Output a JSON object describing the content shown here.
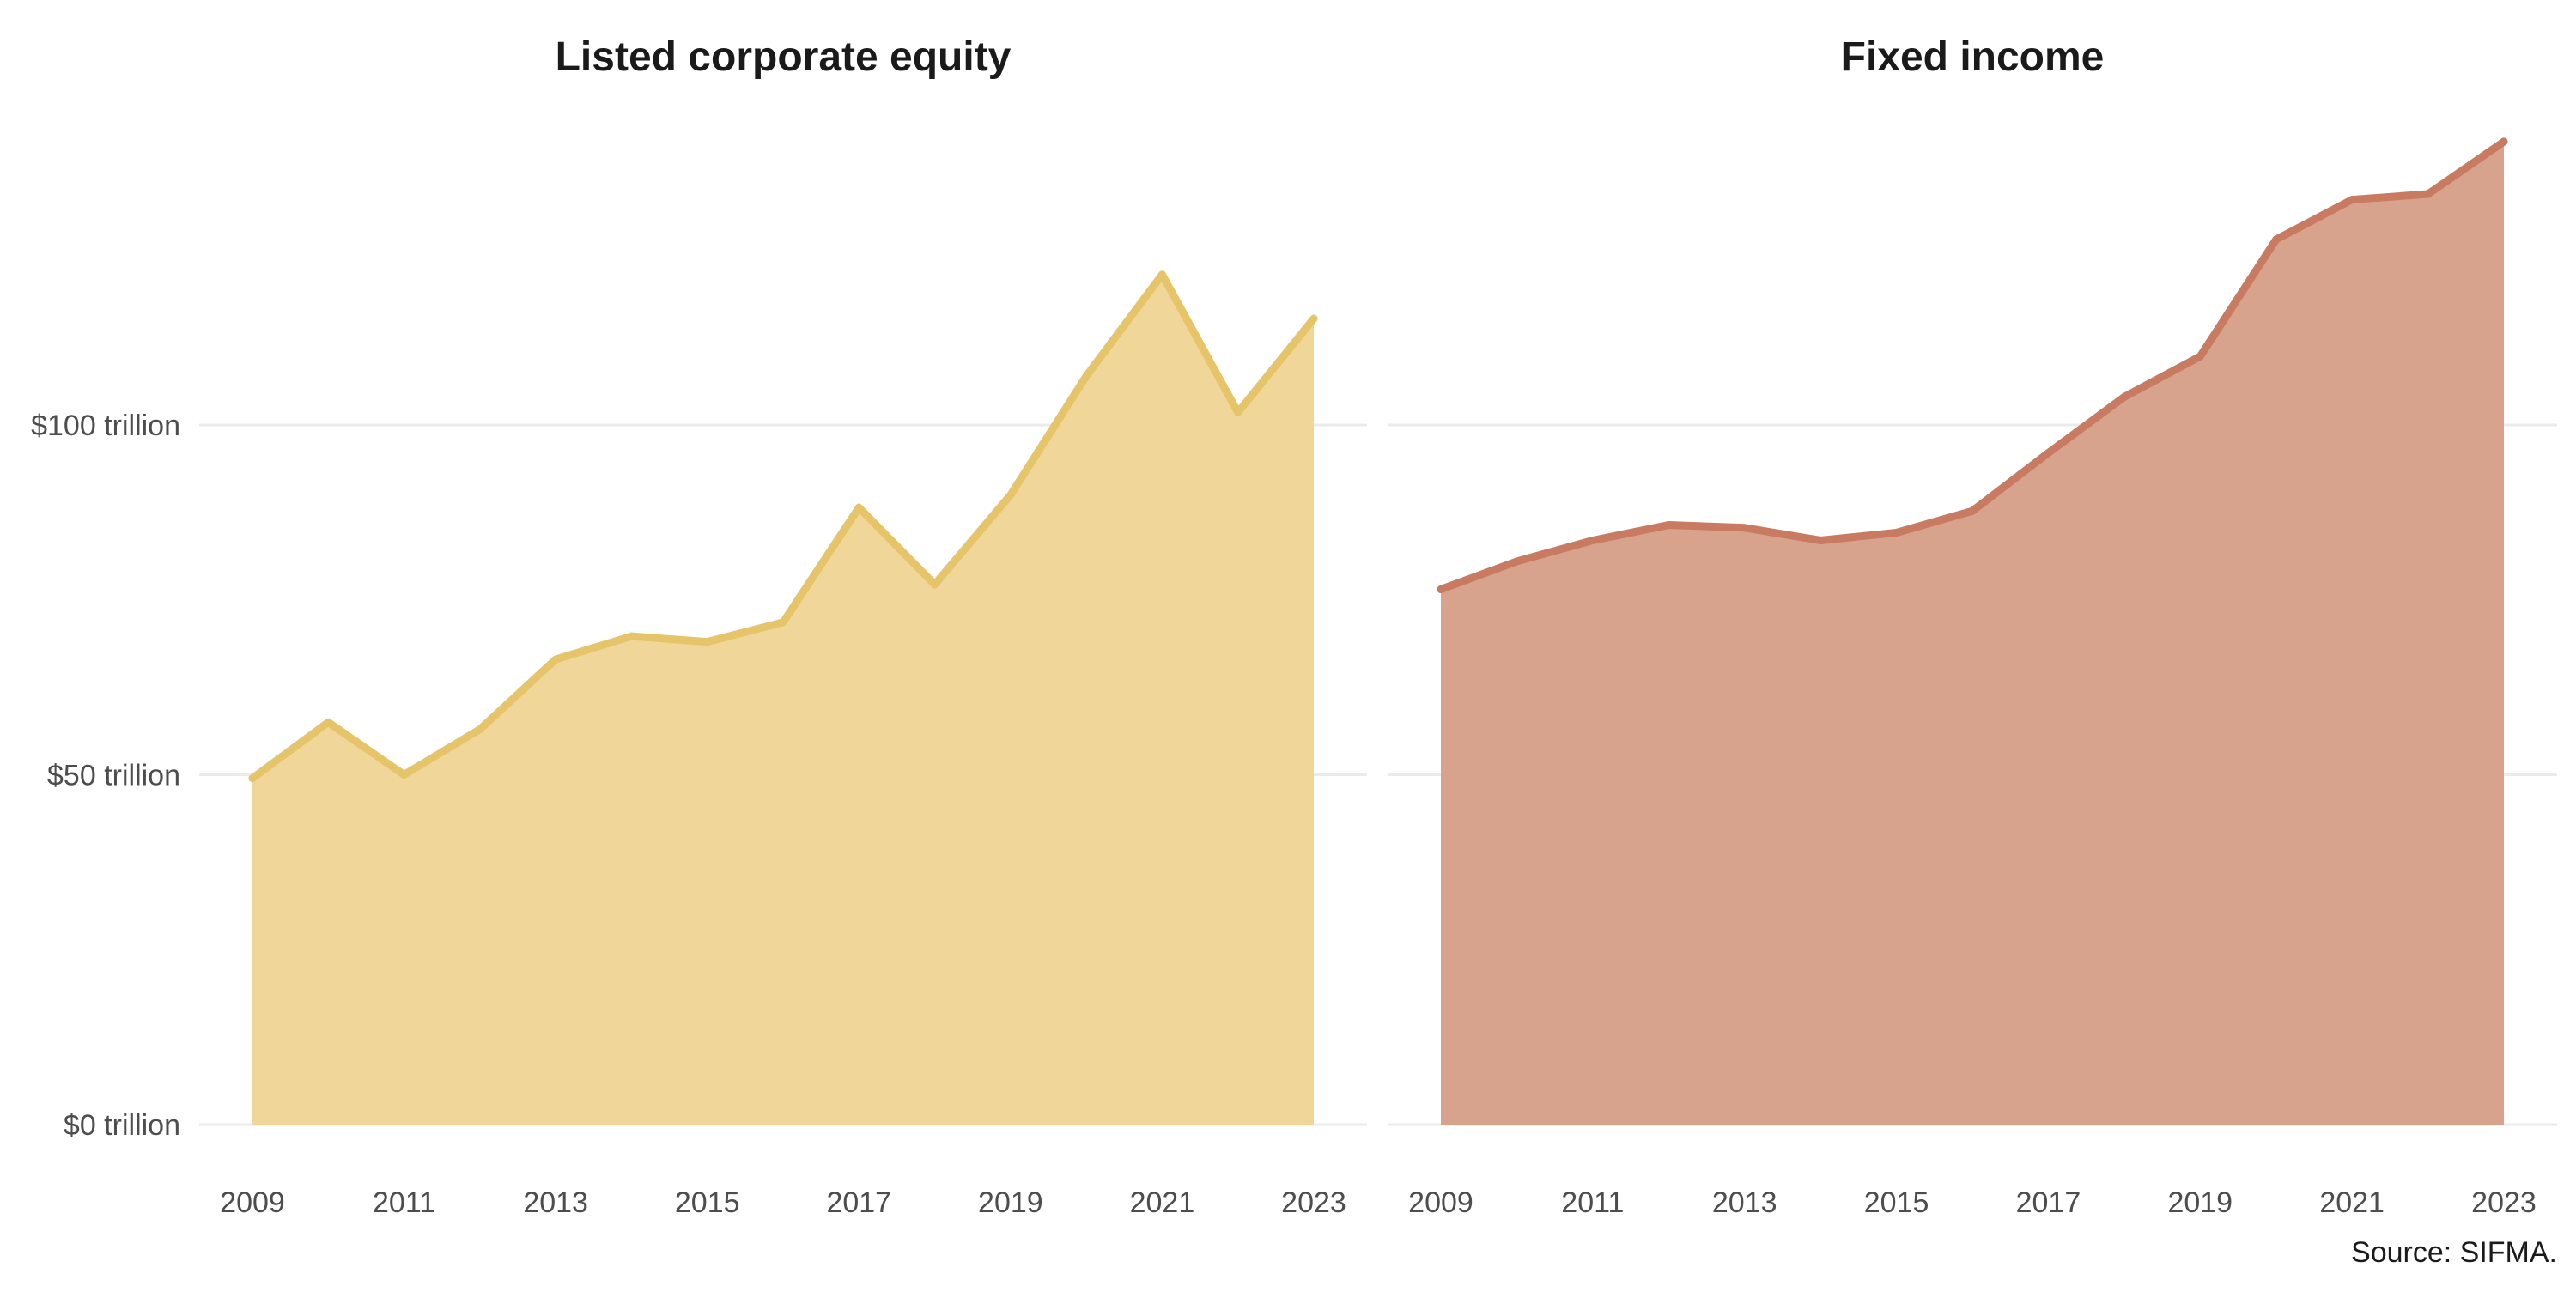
{
  "chart_data": [
    {
      "type": "area",
      "title": "Listed corporate equity",
      "x": [
        2009,
        2010,
        2011,
        2012,
        2013,
        2014,
        2015,
        2016,
        2017,
        2018,
        2019,
        2020,
        2021,
        2022,
        2023
      ],
      "values": [
        49.5,
        57.5,
        50.0,
        56.5,
        66.5,
        69.8,
        69.0,
        71.8,
        88.2,
        77.2,
        90.0,
        107.0,
        121.5,
        101.8,
        115.2
      ],
      "color_line": "#e6c56a",
      "color_fill": "#f0d698",
      "y_unit_prefix": "$",
      "y_unit_suffix": " trillion",
      "ylim": [
        0,
        140
      ],
      "yticks": [
        0,
        50,
        100
      ],
      "ytick_labels": [
        "$0 trillion",
        "$50 trillion",
        "$100 trillion"
      ],
      "xticks": [
        2009,
        2011,
        2013,
        2015,
        2017,
        2019,
        2021,
        2023
      ],
      "xtick_labels": [
        "2009",
        "2011",
        "2013",
        "2015",
        "2017",
        "2019",
        "2021",
        "2023"
      ],
      "grid": true
    },
    {
      "type": "area",
      "title": "Fixed income",
      "x": [
        2009,
        2010,
        2011,
        2012,
        2013,
        2014,
        2015,
        2016,
        2017,
        2018,
        2019,
        2020,
        2021,
        2022,
        2023
      ],
      "values": [
        76.5,
        80.5,
        83.5,
        85.7,
        85.3,
        83.5,
        84.6,
        87.7,
        96.0,
        104.0,
        109.8,
        126.5,
        132.2,
        133.0,
        140.5
      ],
      "color_line": "#c97b62",
      "color_fill": "#d7a38d",
      "ylim": [
        0,
        140
      ],
      "yticks": [
        0,
        50,
        100
      ],
      "xticks": [
        2009,
        2011,
        2013,
        2015,
        2017,
        2019,
        2021,
        2023
      ],
      "xtick_labels": [
        "2009",
        "2011",
        "2013",
        "2015",
        "2017",
        "2019",
        "2021",
        "2023"
      ],
      "grid": true
    }
  ],
  "caption": {
    "source": "Source: SIFMA."
  }
}
